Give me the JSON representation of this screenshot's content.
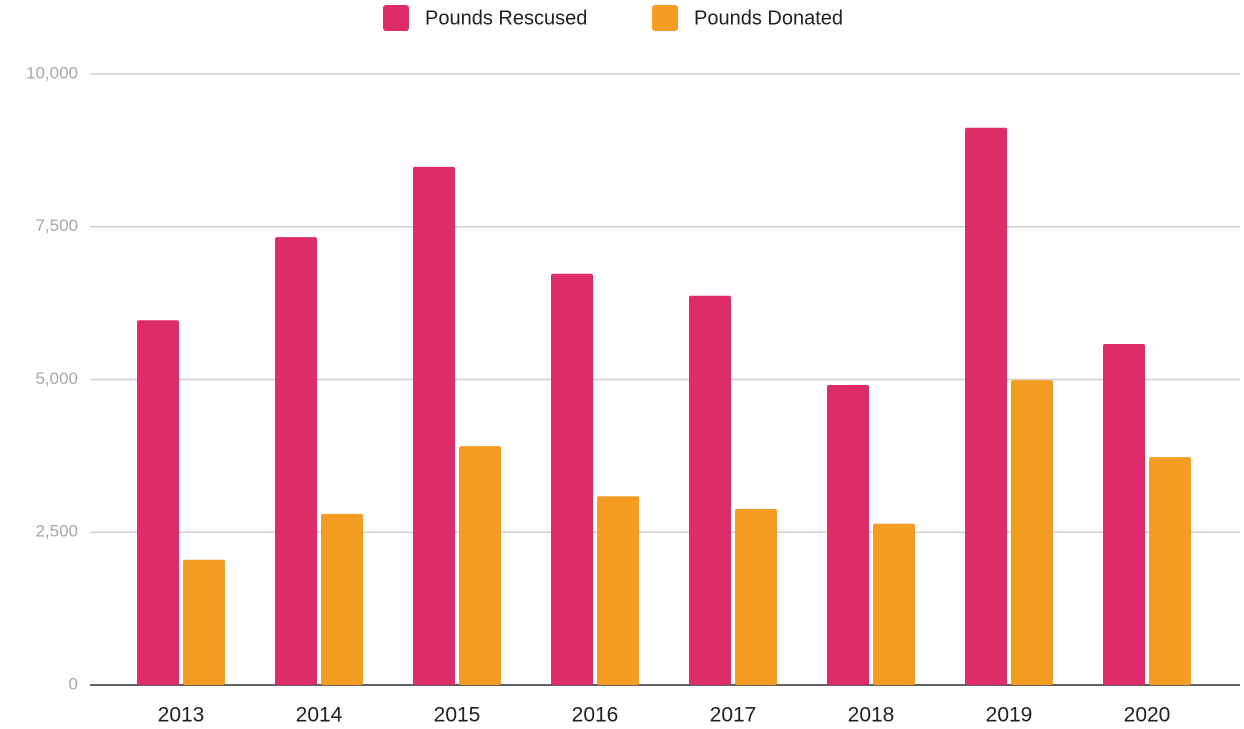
{
  "chart_data": {
    "type": "bar",
    "categories": [
      "2013",
      "2014",
      "2015",
      "2016",
      "2017",
      "2018",
      "2019",
      "2020"
    ],
    "series": [
      {
        "name": "Pounds Rescused",
        "color": "#de2c6b",
        "values": [
          5970,
          7330,
          8480,
          6730,
          6370,
          4910,
          9120,
          5580
        ]
      },
      {
        "name": "Pounds Donated",
        "color": "#f59c22",
        "values": [
          2050,
          2800,
          3910,
          3090,
          2880,
          2640,
          4990,
          3730
        ]
      }
    ],
    "ylim": [
      0,
      10000
    ],
    "yticks": [
      0,
      {
        "value": 2500,
        "label": "2,500"
      },
      {
        "value": 5000,
        "label": "5,000"
      },
      {
        "value": 7500,
        "label": "7,500"
      },
      {
        "value": 10000,
        "label": "10,000"
      }
    ],
    "grid": true,
    "legend": "top"
  }
}
